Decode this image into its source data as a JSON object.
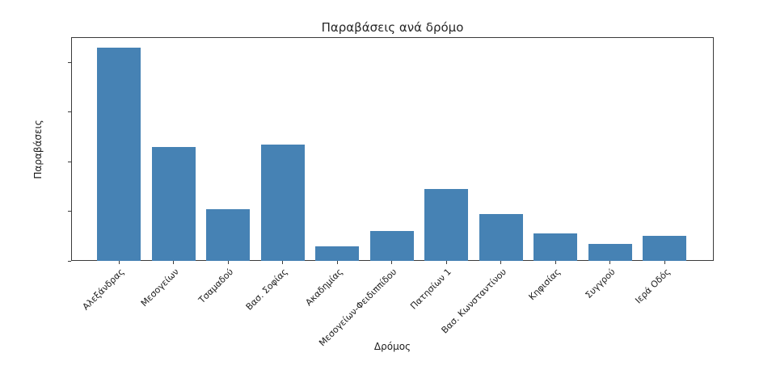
{
  "chart_data": {
    "type": "bar",
    "title": "Παραβάσεις ανά δρόμο",
    "xlabel": "Δρόμος",
    "ylabel": "Παραβάσεις",
    "categories": [
      "Αλεξάνδρας",
      "Μεσογείων",
      "Τσαμαδού",
      "Βασ. Σοφίας",
      "Ακαδημίας",
      "Μεσογείων-Φειδιππίδου",
      "Πατησίων 1",
      "Βασ. Κωνσταντίνου",
      "Κηφισίας",
      "Συγγρού",
      "Ιερά Οδός"
    ],
    "values": [
      86,
      46,
      21,
      47,
      6,
      12,
      29,
      19,
      11,
      7,
      10
    ],
    "value_labels_shown": true,
    "yticks": [
      0,
      20,
      40,
      60,
      80
    ],
    "ylim": [
      0,
      90.3
    ],
    "grid": false,
    "legend_position": "none",
    "bar_color": "#4682b4",
    "axis_color": "#3a3a3a",
    "text_color": "#1c1c1c"
  }
}
